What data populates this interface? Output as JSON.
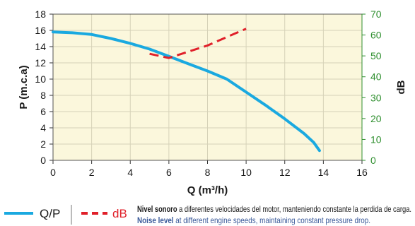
{
  "colors": {
    "plot_background": "#fbf7dc",
    "grid": "#d6d2b8",
    "qp_series": "#1aa9e0",
    "db_series": "#e0202a",
    "right_axis": "#2f8f2f",
    "note_blue": "#3a5a9a"
  },
  "chart_data": {
    "type": "line",
    "xlabel": "Q (m³/h)",
    "ylabel": "P (m.c.a)",
    "y2label": "dB",
    "xlim": [
      0,
      16
    ],
    "ylim": [
      0,
      18
    ],
    "y2lim": [
      0,
      70
    ],
    "x_ticks": [
      "0",
      "2",
      "4",
      "6",
      "8",
      "10",
      "12",
      "14",
      "16"
    ],
    "y_ticks": [
      "0",
      "2",
      "4",
      "6",
      "8",
      "10",
      "12",
      "14",
      "16",
      "18"
    ],
    "y2_ticks": [
      "0",
      "10",
      "20",
      "30",
      "40",
      "50",
      "60",
      "70"
    ],
    "grid": true,
    "series": [
      {
        "name": "Q/P",
        "axis": "left",
        "style": "solid",
        "x": [
          0,
          1,
          2,
          3,
          4,
          5,
          6,
          7,
          8,
          9,
          10,
          11,
          12,
          13,
          13.5,
          13.8
        ],
        "y": [
          15.8,
          15.7,
          15.5,
          15.0,
          14.4,
          13.7,
          12.8,
          11.9,
          11.0,
          10.0,
          8.4,
          6.8,
          5.1,
          3.3,
          2.2,
          1.2
        ]
      },
      {
        "name": "dB",
        "axis": "right",
        "style": "dashed",
        "x": [
          5,
          6,
          7,
          8,
          9,
          10
        ],
        "y": [
          51,
          49,
          52,
          55,
          59,
          63
        ]
      }
    ],
    "legend": [
      {
        "label": "Q/P",
        "style": "solid"
      },
      {
        "label": "dB",
        "style": "dashed"
      }
    ]
  },
  "note": {
    "line1_bold": "Nivel sonoro",
    "line1_rest": " a diferentes velocidades del motor, manteniendo constante la perdida de carga.",
    "line2_bold": "Noise level",
    "line2_rest": " at different engine speeds, maintaining constant pressure drop."
  }
}
